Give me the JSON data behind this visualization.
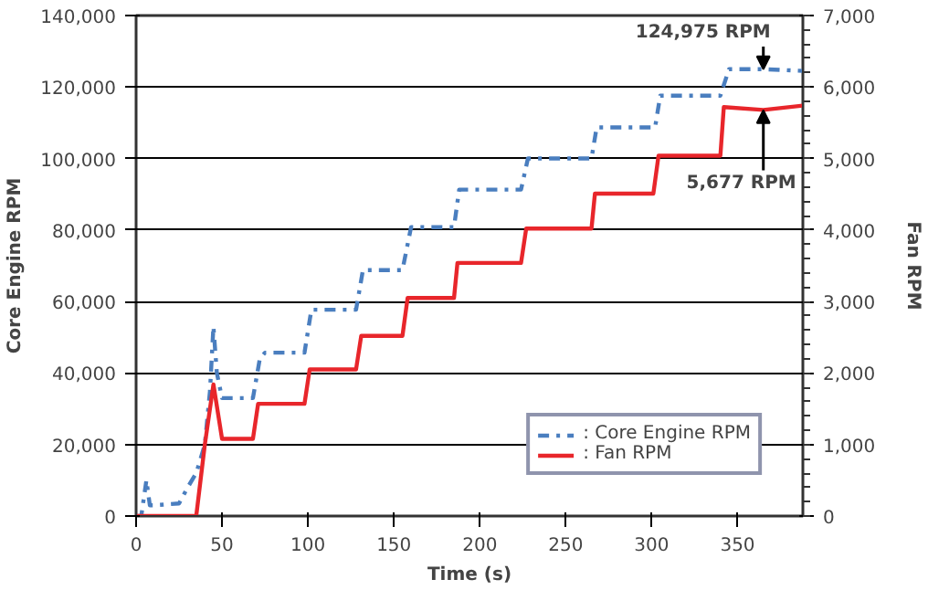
{
  "chart_data": {
    "type": "line",
    "xlabel": "Time (s)",
    "ylabel": "Core Engine RPM",
    "y2label": "Fan RPM",
    "xlim": [
      0,
      388
    ],
    "xticks": [
      0,
      50,
      100,
      150,
      200,
      250,
      300,
      350
    ],
    "ylim": [
      0,
      140000
    ],
    "yticks": [
      {
        "value": 0,
        "label": "0"
      },
      {
        "value": 20000,
        "label": "20,000"
      },
      {
        "value": 40000,
        "label": "40,000"
      },
      {
        "value": 60000,
        "label": "60,000"
      },
      {
        "value": 80000,
        "label": "80,000"
      },
      {
        "value": 100000,
        "label": "100,000"
      },
      {
        "value": 120000,
        "label": "120,000"
      },
      {
        "value": 140000,
        "label": "140,000"
      }
    ],
    "y2lim": [
      0,
      7000
    ],
    "y2ticks": [
      {
        "value": 0,
        "label": "0"
      },
      {
        "value": 1000,
        "label": "1,000"
      },
      {
        "value": 2000,
        "label": "2,000"
      },
      {
        "value": 3000,
        "label": "3,000"
      },
      {
        "value": 4000,
        "label": "4,000"
      },
      {
        "value": 5000,
        "label": "5,000"
      },
      {
        "value": 6000,
        "label": "6,000"
      },
      {
        "value": 7000,
        "label": "7,000"
      }
    ],
    "grid": "y",
    "legend": "bottom right",
    "marker": "none",
    "series": [
      {
        "name": ": Core Engine RPM",
        "color": "#4a7ebf",
        "line_style": "dashed",
        "x": [
          0,
          3,
          6,
          8,
          10,
          25,
          30,
          35,
          40,
          43,
          45,
          47,
          50,
          68,
          72,
          75,
          98,
          102,
          128,
          132,
          155,
          160,
          185,
          188,
          224,
          228,
          265,
          268,
          302,
          305,
          340,
          345,
          365,
          388
        ],
        "values": [
          0,
          0,
          10000,
          3000,
          3000,
          3500,
          8000,
          12000,
          20000,
          35000,
          53000,
          40000,
          33000,
          33000,
          44000,
          45700,
          45700,
          57700,
          57700,
          68800,
          68800,
          80800,
          80800,
          91300,
          91300,
          100000,
          100000,
          108700,
          108700,
          117600,
          117600,
          125000,
          125000,
          124500
        ]
      },
      {
        "name": ": Fan RPM",
        "color": "#e8262b",
        "line_style": "solid",
        "axis": "y2",
        "x": [
          0,
          35,
          40,
          45,
          50,
          51,
          68,
          71,
          98,
          101,
          128,
          131,
          155,
          158,
          185,
          187,
          224,
          227,
          265,
          267,
          301,
          304,
          340,
          342,
          365,
          388
        ],
        "values": [
          0,
          0,
          1000,
          1840,
          1080,
          1080,
          1080,
          1570,
          1570,
          2050,
          2050,
          2520,
          2520,
          3050,
          3050,
          3540,
          3540,
          4020,
          4020,
          4510,
          4510,
          5040,
          5040,
          5720,
          5680,
          5740
        ]
      }
    ],
    "annotations": [
      {
        "text": "124,975 RPM",
        "x": 365,
        "y": 125000
      },
      {
        "text": "5,677 RPM",
        "x": 365,
        "y": 113500
      }
    ]
  }
}
